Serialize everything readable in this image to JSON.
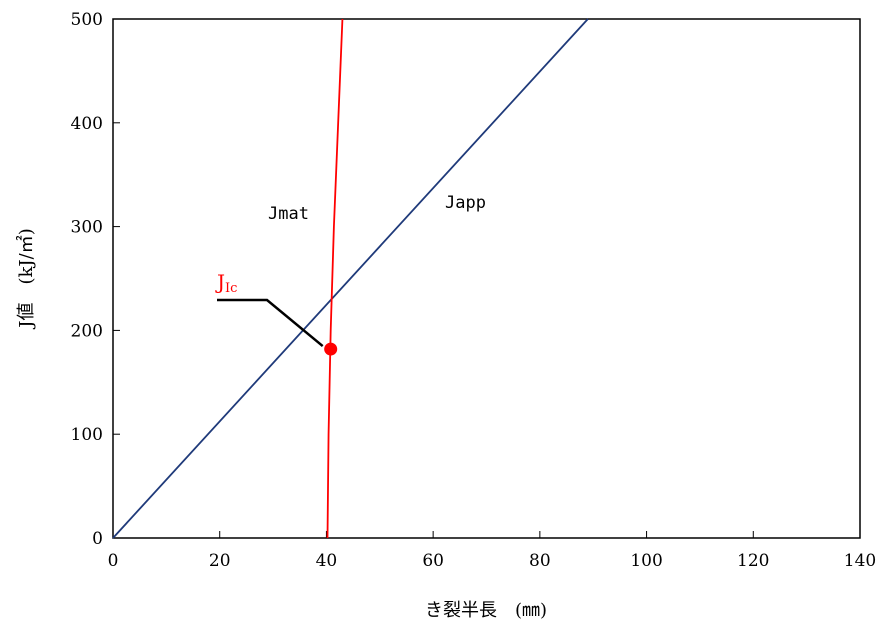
{
  "chart_data": {
    "type": "line",
    "title": "",
    "xlabel": "き裂半長　(㎜)",
    "ylabel": "J値　(kJ/㎡)",
    "xlim": [
      0,
      140
    ],
    "ylim": [
      0,
      500
    ],
    "xticks": [
      0,
      20,
      40,
      60,
      80,
      100,
      120,
      140
    ],
    "yticks": [
      0,
      100,
      200,
      300,
      400,
      500
    ],
    "grid": false,
    "series": [
      {
        "name": "Japp",
        "color": "#1f3a7a",
        "x": [
          0,
          89
        ],
        "y": [
          0,
          500
        ]
      },
      {
        "name": "Jmat",
        "color": "#ff0000",
        "x": [
          40.2,
          40.4,
          40.8,
          41.4,
          42.2,
          43.0
        ],
        "y": [
          0,
          100,
          200,
          300,
          400,
          500
        ]
      }
    ],
    "annotations": [
      {
        "text_main": "J",
        "text_sub": "Ic",
        "color": "#ff0000",
        "point": {
          "x": 40.8,
          "y": 182
        },
        "marker_color": "#ff0000"
      }
    ]
  }
}
